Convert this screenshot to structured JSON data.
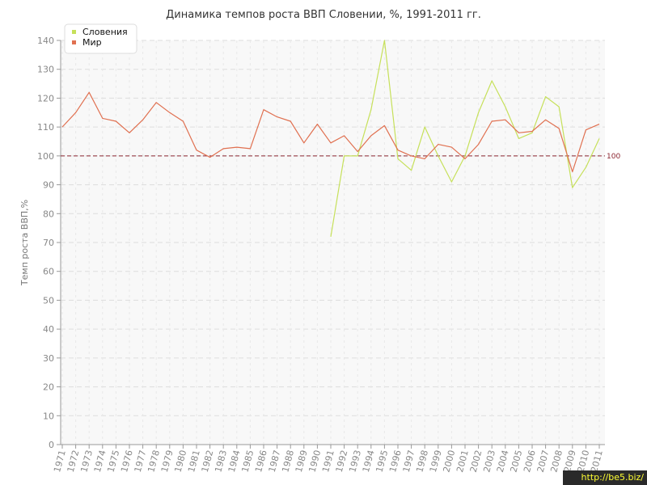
{
  "chart_data": {
    "type": "line",
    "title": "Динамика темпов роста ВВП Словении, %, 1991-2011 гг.",
    "xlabel": "",
    "ylabel": "Темп роста ВВП,%",
    "ylim": [
      0,
      140
    ],
    "yticks": [
      0,
      10,
      20,
      30,
      40,
      50,
      60,
      70,
      80,
      90,
      100,
      110,
      120,
      130,
      140
    ],
    "x": [
      "1971",
      "1972",
      "1973",
      "1974",
      "1975",
      "1976",
      "1977",
      "1978",
      "1979",
      "1980",
      "1981",
      "1982",
      "1983",
      "1984",
      "1985",
      "1986",
      "1987",
      "1988",
      "1989",
      "1990",
      "1991",
      "1992",
      "1993",
      "1994",
      "1995",
      "1996",
      "1997",
      "1998",
      "1999",
      "2000",
      "2001",
      "2002",
      "2003",
      "2004",
      "2005",
      "2006",
      "2007",
      "2008",
      "2009",
      "2010",
      "2011"
    ],
    "grid": true,
    "legend_position": "top-left",
    "reference_line": {
      "value": 100,
      "label": "100",
      "color": "#8b2530"
    },
    "series": [
      {
        "name": "Словения",
        "color": "#c6e05a",
        "values": [
          null,
          null,
          null,
          null,
          null,
          null,
          null,
          null,
          null,
          null,
          null,
          null,
          null,
          null,
          null,
          null,
          null,
          null,
          null,
          null,
          72,
          100,
          100,
          116,
          140,
          99,
          95,
          110,
          100,
          91,
          100,
          115,
          126,
          117,
          106,
          108,
          120.5,
          117,
          89,
          96,
          106
        ]
      },
      {
        "name": "Мир",
        "color": "#e07050",
        "values": [
          110,
          115,
          122,
          113,
          112,
          108,
          112.5,
          118.5,
          115,
          112,
          102,
          99.5,
          102.5,
          103,
          102.5,
          116,
          113.5,
          112,
          104.5,
          111,
          104.5,
          107,
          101.5,
          107,
          110.5,
          102,
          100,
          99,
          104,
          103,
          99,
          104,
          112,
          112.5,
          108,
          108.5,
          112.5,
          109.5,
          94.5,
          109,
          111
        ]
      }
    ]
  },
  "watermark": "http://be5.biz/"
}
